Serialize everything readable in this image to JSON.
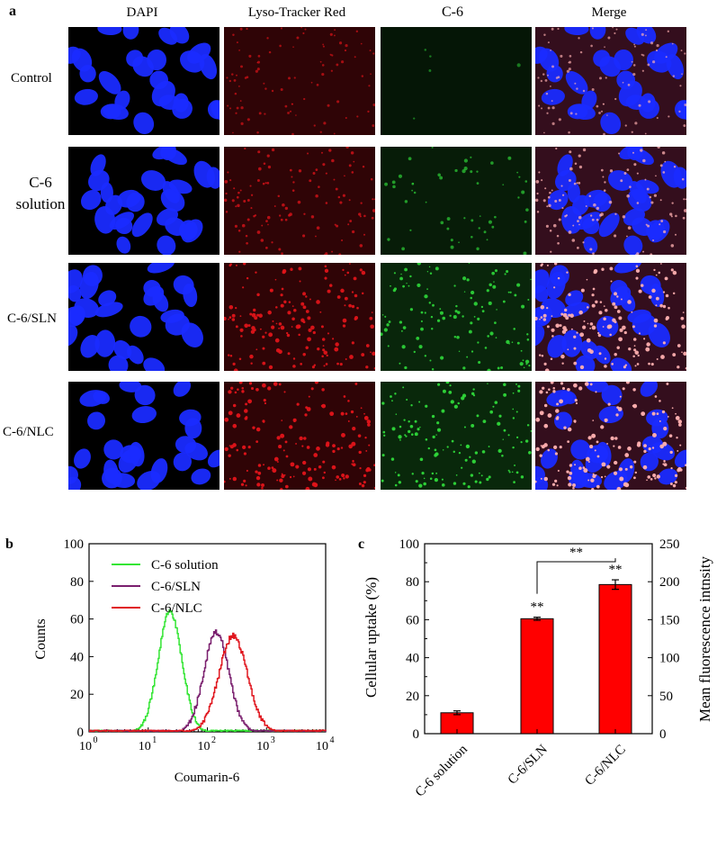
{
  "panel_a": {
    "label": "a",
    "columns": [
      "DAPI",
      "Lyso-Tracker Red",
      "C-6",
      "Merge"
    ],
    "rows": [
      "Control",
      "C-6 solution",
      "C-6/SLN",
      "C-6/NLC"
    ],
    "colors": {
      "dapi": "#1a2bff",
      "lyso": "#e0141a",
      "c6": "#2fd83a",
      "merge_spot": "#ffb0b0"
    },
    "intensity": {
      "dapi": [
        1,
        1,
        1,
        1
      ],
      "lyso": [
        0.45,
        0.6,
        0.9,
        0.95
      ],
      "c6": [
        0.03,
        0.35,
        0.8,
        0.9
      ]
    }
  },
  "chart_data": [
    {
      "panel": "b",
      "type": "line",
      "xlabel": "Coumarin-6",
      "ylabel": "Counts",
      "xscale": "log",
      "xlim": [
        1,
        10000
      ],
      "ylim": [
        0,
        100
      ],
      "x_ticks": [
        "10",
        "10",
        "10",
        "10",
        "10"
      ],
      "x_tick_exponents": [
        "0",
        "1",
        "2",
        "3",
        "4"
      ],
      "y_ticks": [
        "0",
        "20",
        "40",
        "60",
        "80",
        "100"
      ],
      "legend_position": "top-left",
      "series": [
        {
          "name": "C-6 solution",
          "color": "#33e533",
          "peak_x": 23,
          "peak_y": 64,
          "width_decades": 0.2
        },
        {
          "name": "C-6/SLN",
          "color": "#7a1f6e",
          "peak_x": 140,
          "peak_y": 53,
          "width_decades": 0.21
        },
        {
          "name": "C-6/NLC",
          "color": "#e0161e",
          "peak_x": 270,
          "peak_y": 51,
          "width_decades": 0.24
        }
      ]
    },
    {
      "panel": "c",
      "type": "bar",
      "categories": [
        "C-6 solution",
        "C-6/SLN",
        "C-6/NLC"
      ],
      "values": [
        11,
        60.5,
        78.5
      ],
      "errors": [
        1,
        0.8,
        2.5
      ],
      "bar_color": "#ff0000",
      "ylabel": "Cellular uptake (%)",
      "y2label": "Mean fluorescence intnsity",
      "ylim": [
        0,
        100
      ],
      "y2lim": [
        0,
        250
      ],
      "y_ticks": [
        "0",
        "20",
        "40",
        "60",
        "80",
        "100"
      ],
      "y2_ticks": [
        "0",
        "50",
        "100",
        "150",
        "200",
        "250"
      ],
      "significance": [
        {
          "category": "C-6/SLN",
          "label": "**"
        },
        {
          "category": "C-6/NLC",
          "label": "**"
        },
        {
          "between": [
            "C-6/SLN",
            "C-6/NLC"
          ],
          "label": "**"
        }
      ]
    }
  ]
}
